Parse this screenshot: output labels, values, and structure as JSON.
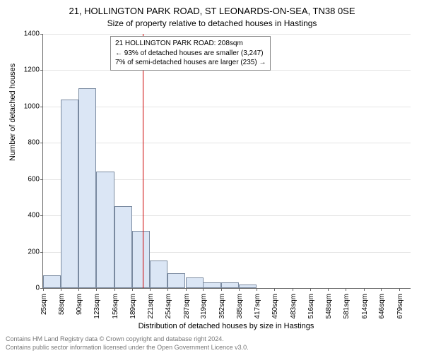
{
  "title_main": "21, HOLLINGTON PARK ROAD, ST LEONARDS-ON-SEA, TN38 0SE",
  "title_sub": "Size of property relative to detached houses in Hastings",
  "ylabel": "Number of detached houses",
  "xlabel": "Distribution of detached houses by size in Hastings",
  "footer1": "Contains HM Land Registry data © Crown copyright and database right 2024.",
  "footer2": "Contains public sector information licensed under the Open Government Licence v3.0.",
  "annotation": {
    "line1": "21 HOLLINGTON PARK ROAD: 208sqm",
    "line2": "← 93% of detached houses are smaller (3,247)",
    "line3": "7% of semi-detached houses are larger (235) →"
  },
  "chart": {
    "type": "histogram",
    "ylim": [
      0,
      1400
    ],
    "ytick_step": 200,
    "yticks": [
      0,
      200,
      400,
      600,
      800,
      1000,
      1200,
      1400
    ],
    "x_min": 25,
    "x_max": 700,
    "xtick_labels": [
      "25sqm",
      "58sqm",
      "90sqm",
      "123sqm",
      "156sqm",
      "189sqm",
      "221sqm",
      "254sqm",
      "287sqm",
      "319sqm",
      "352sqm",
      "385sqm",
      "417sqm",
      "450sqm",
      "483sqm",
      "516sqm",
      "548sqm",
      "581sqm",
      "614sqm",
      "646sqm",
      "679sqm"
    ],
    "xtick_values": [
      25,
      58,
      90,
      123,
      156,
      189,
      221,
      254,
      287,
      319,
      352,
      385,
      417,
      450,
      483,
      516,
      548,
      581,
      614,
      646,
      679
    ],
    "bars": {
      "bin_starts": [
        25,
        58,
        90,
        123,
        156,
        189,
        221,
        254,
        287,
        319,
        352,
        385,
        417,
        450,
        483,
        516,
        548,
        581,
        614,
        646,
        679
      ],
      "bin_width_sqm": 32.5,
      "heights": [
        70,
        1040,
        1100,
        640,
        450,
        315,
        150,
        80,
        60,
        30,
        30,
        20,
        0,
        0,
        0,
        0,
        0,
        0,
        0,
        0,
        0
      ]
    },
    "vline_value": 208,
    "vline_color": "#cc0000",
    "bar_fill": "#dbe6f5",
    "bar_stroke": "#7a8aa0",
    "background_color": "#ffffff",
    "grid_color": "#e4e4e4",
    "axis_color": "#666666",
    "title_fontsize": 13,
    "subtitle_fontsize": 12,
    "label_fontsize": 11,
    "tick_fontsize": 10
  }
}
